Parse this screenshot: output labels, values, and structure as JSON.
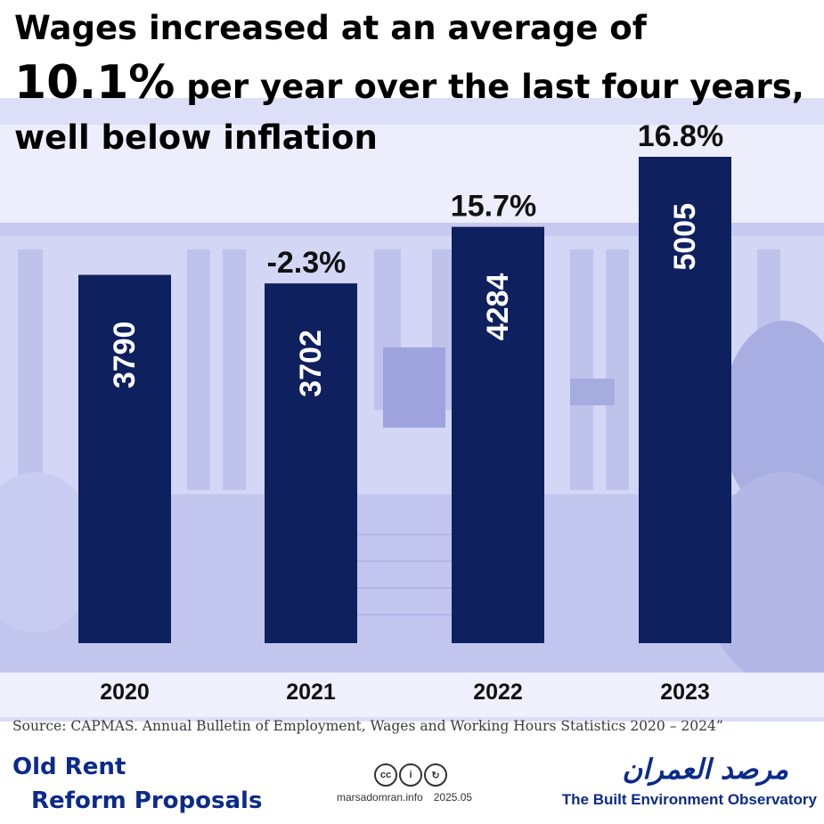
{
  "title": {
    "line1": "Wages increased at an average of",
    "highlight": "10.1%",
    "line2_rest": "per year over the last four years,",
    "line3": "well below inflation"
  },
  "colors": {
    "bar": "#0f205f",
    "background_tint": "#c7caf0",
    "brand_blue": "#0b2a8c"
  },
  "chart_data": {
    "type": "bar",
    "categories": [
      "2020",
      "2021",
      "2022",
      "2023"
    ],
    "values": [
      3790,
      3702,
      4284,
      5005
    ],
    "data_labels": [
      "3790",
      "3702",
      "4284",
      "5005"
    ],
    "growth_labels": [
      "",
      "-2.3%",
      "15.7%",
      "16.8%"
    ],
    "ylim": [
      0,
      5500
    ],
    "grid": false,
    "legend": "none"
  },
  "source": "Source: CAPMAS. Annual Bulletin of Employment, Wages and Working Hours Statistics 2020 – 2024”",
  "footer": {
    "project_line1": "Old Rent",
    "project_line2": "Reform Proposals",
    "license_icons": [
      "cc-icon",
      "by-icon",
      "sa-icon"
    ],
    "license_glyphs": [
      "cc",
      "i",
      "↻"
    ],
    "website": "marsadomran.info",
    "date": "2025.05",
    "org_arabic": "مرصد العمران",
    "org_english": "The Built Environment Observatory"
  }
}
